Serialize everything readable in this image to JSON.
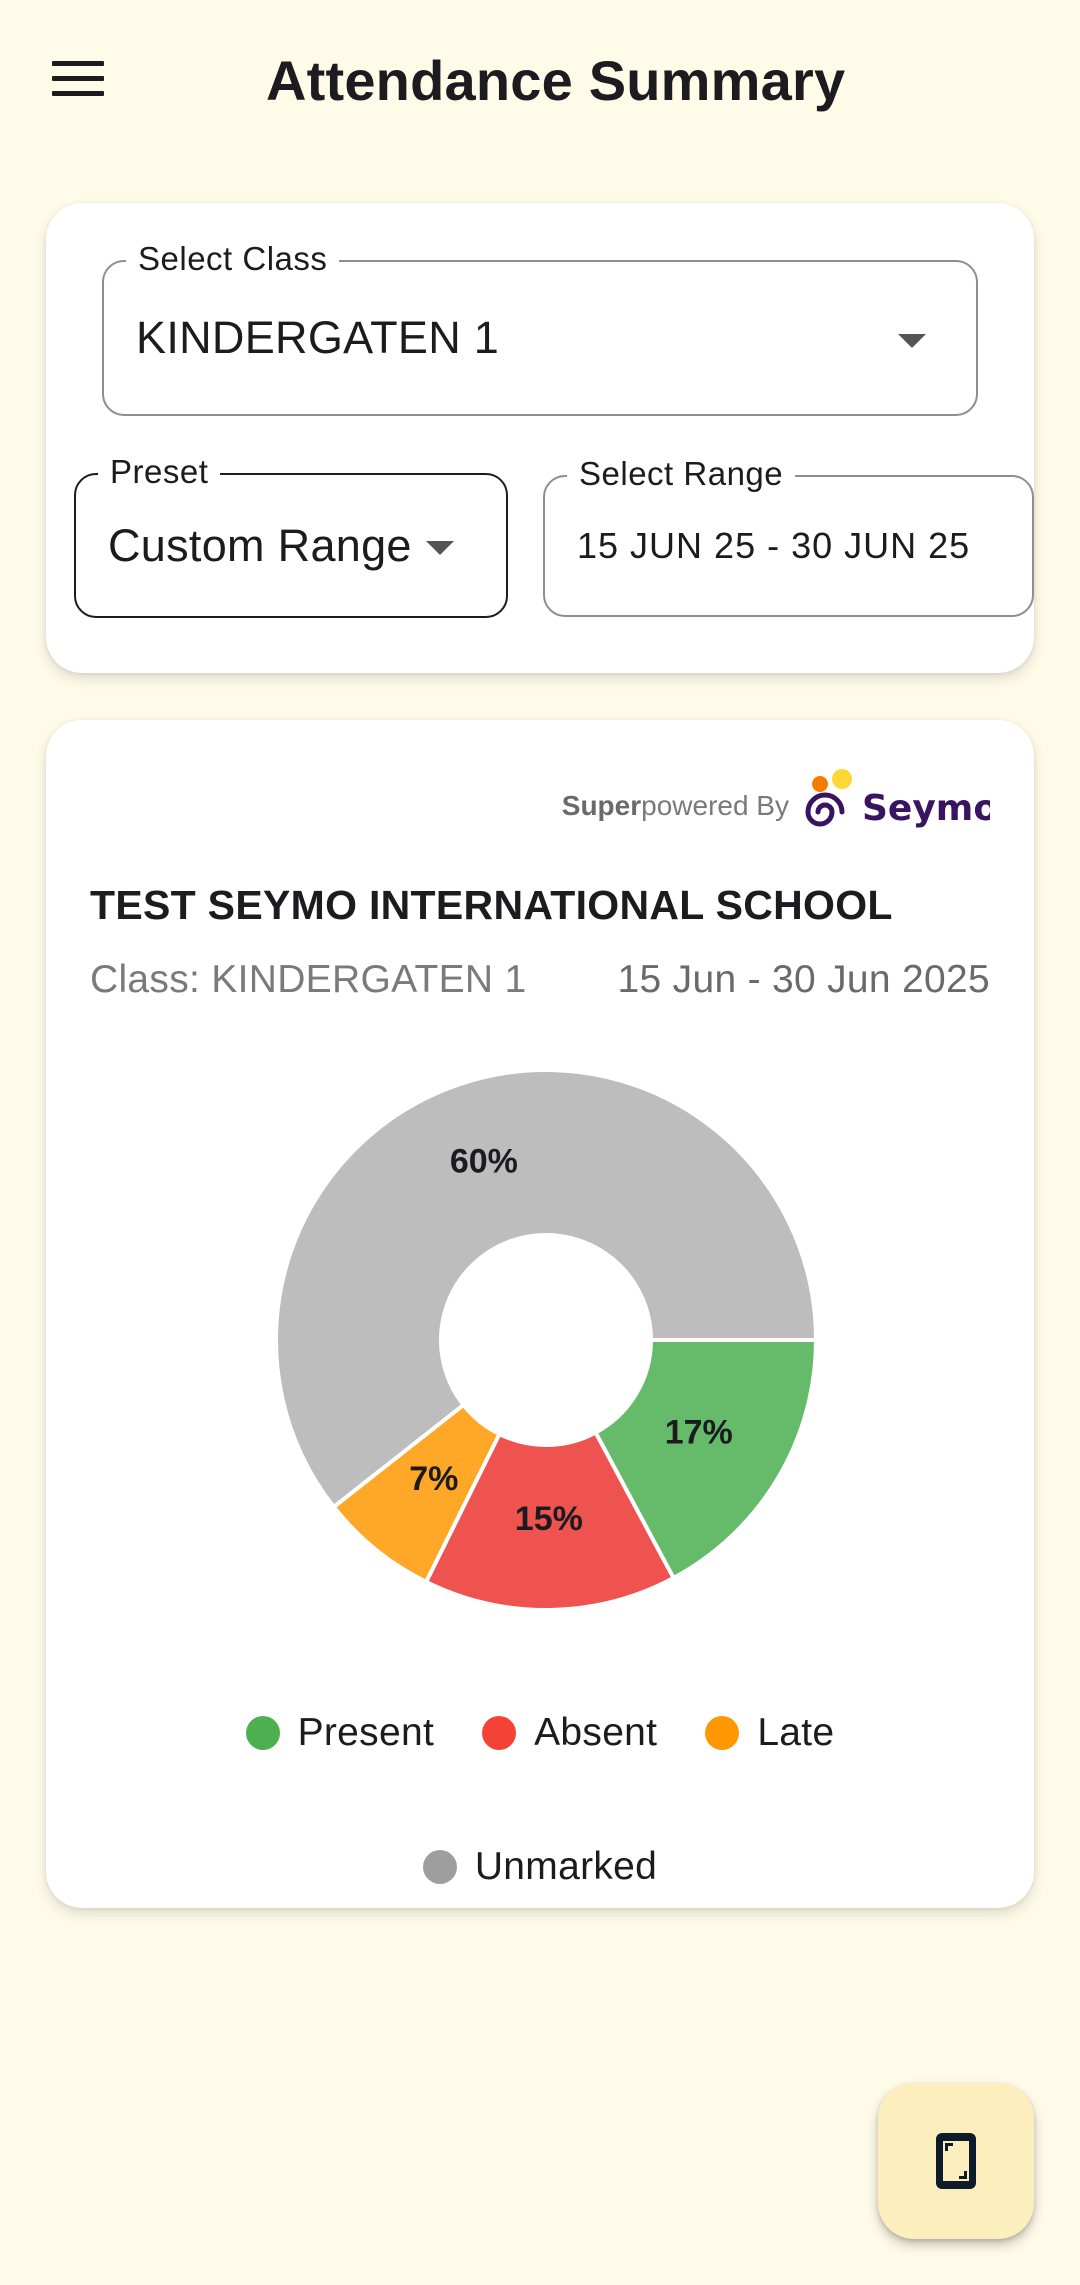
{
  "header": {
    "title": "Attendance Summary",
    "menu_icon": "hamburger-menu-icon"
  },
  "filters": {
    "class_label": "Select Class",
    "class_value": "KINDERGATEN 1",
    "preset_label": "Preset",
    "preset_value": "Custom Range",
    "range_label": "Select Range",
    "range_value": "15 JUN 25 - 30 JUN 25"
  },
  "report": {
    "powered_super": "Super",
    "powered_rest": "powered By",
    "logo_text": "Seymo",
    "school_name": "TEST SEYMO INTERNATIONAL SCHOOL",
    "class_line": "Class: KINDERGATEN 1",
    "date_line": "15 Jun - 30 Jun 2025"
  },
  "chart_data": {
    "type": "pie",
    "style": "donut",
    "categories": [
      "Present",
      "Absent",
      "Late",
      "Unmarked"
    ],
    "values": [
      17,
      15,
      7,
      60
    ],
    "labels": [
      "17%",
      "15%",
      "7%",
      "60%"
    ],
    "colors": [
      "#66bb6a",
      "#ef5350",
      "#ffa726",
      "#bdbdbd"
    ],
    "legend_colors": [
      "#4caf50",
      "#f44336",
      "#ff9800",
      "#9e9e9e"
    ],
    "legend_position": "bottom"
  },
  "fab": {
    "icon": "phone-screen-icon"
  }
}
